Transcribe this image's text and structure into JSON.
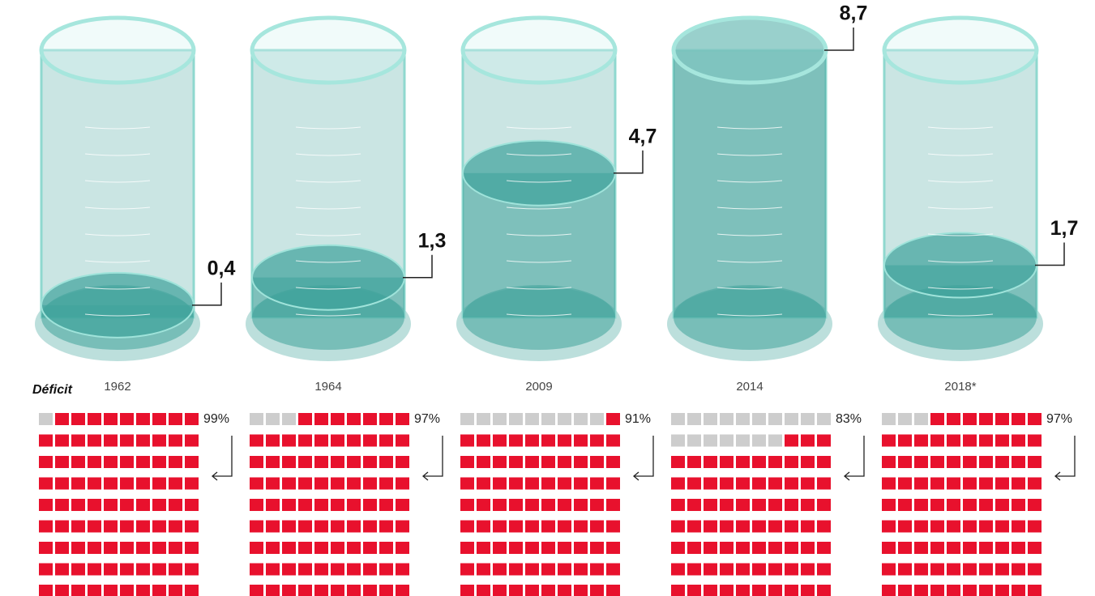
{
  "chart_data": {
    "type": "cylinder",
    "categories": [
      "1962",
      "1964",
      "2009",
      "2014",
      "2018*"
    ],
    "values": [
      0.4,
      1.3,
      4.7,
      8.7,
      1.7
    ],
    "value_labels": [
      "0,4",
      "1,3",
      "4,7",
      "8,7",
      "1,7"
    ],
    "color": "#3fa39b",
    "deficit": {
      "label": "Déficit",
      "values": [
        99,
        97,
        91,
        83,
        97
      ],
      "value_labels": [
        "99%",
        "97%",
        "91%",
        "83%",
        "97%"
      ],
      "color": "#e8112d",
      "empty_color": "#cdcdcd"
    }
  }
}
